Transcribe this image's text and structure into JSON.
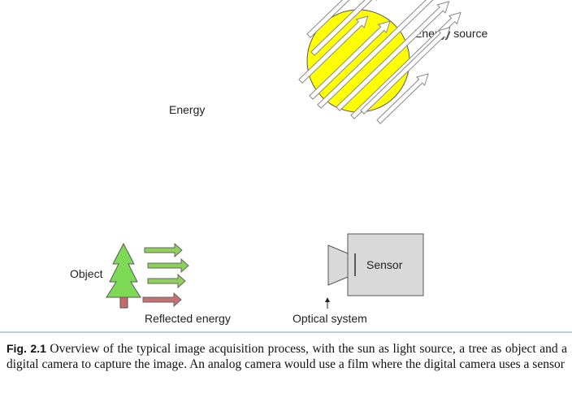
{
  "labels": {
    "energy_source": "Energy source",
    "energy": "Energy",
    "object": "Object",
    "reflected_energy": "Reflected energy",
    "sensor": "Sensor",
    "optical_system": "Optical system"
  },
  "caption": {
    "fig_num": "Fig. 2.1",
    "text": "Overview of the typical image acquisition process, with the sun as light source, a tree as object and a digital camera to capture the image. An analog camera would use a film where the digital camera uses a sensor"
  },
  "colors": {
    "sun": "#ffff00",
    "tree": "#7ed957",
    "trunk": "#c96a6a",
    "reflected_green": "#8ed05a",
    "reflected_red": "#c77070",
    "camera": "#d9d9d9"
  }
}
